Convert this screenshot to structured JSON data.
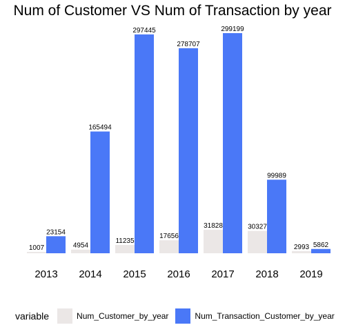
{
  "chart_data": {
    "type": "bar",
    "title": "Num of Customer VS Num of Transaction by year",
    "xlabel": "",
    "ylabel": "",
    "categories": [
      "2013",
      "2014",
      "2015",
      "2016",
      "2017",
      "2018",
      "2019"
    ],
    "series": [
      {
        "name": "Num_Customer_by_year",
        "color": "#ebe7e6",
        "values": [
          1007,
          4954,
          11235,
          17656,
          31828,
          30327,
          2993
        ]
      },
      {
        "name": "Num_Transaction_Customer_by_year",
        "color": "#4a78f7",
        "values": [
          23154,
          165494,
          297445,
          278707,
          299199,
          99989,
          5862
        ]
      }
    ],
    "ylim": [
      0,
      299199
    ],
    "grid": false,
    "legend": {
      "title": "variable",
      "position": "bottom"
    }
  }
}
